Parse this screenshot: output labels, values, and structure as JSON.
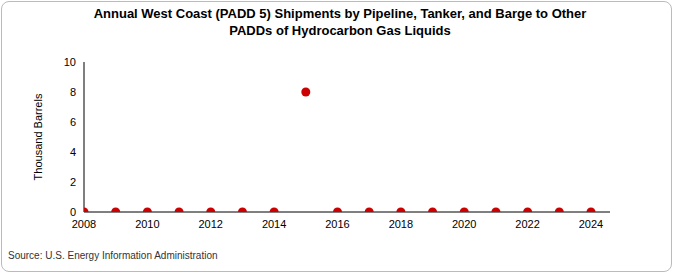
{
  "chart_data": {
    "type": "scatter",
    "title": "Annual West Coast (PADD 5) Shipments by Pipeline, Tanker, and Barge to Other PADDs of Hydrocarbon Gas Liquids",
    "y_label": "Thousand Barrels",
    "source": "Source: U.S. Energy Information Administration",
    "x": [
      2008,
      2009,
      2010,
      2011,
      2012,
      2013,
      2014,
      2015,
      2016,
      2017,
      2018,
      2019,
      2020,
      2021,
      2022,
      2023,
      2024
    ],
    "values": [
      0,
      0,
      0,
      0,
      0,
      0,
      0,
      8,
      0,
      0,
      0,
      0,
      0,
      0,
      0,
      0,
      0
    ],
    "color": "#cc0000",
    "marker": "circle",
    "xlim": [
      2008,
      2024.6
    ],
    "xticks": [
      2008,
      2010,
      2012,
      2014,
      2016,
      2018,
      2020,
      2022,
      2024
    ],
    "ylim": [
      0,
      10
    ],
    "yticks": [
      0,
      2,
      4,
      6,
      8,
      10
    ],
    "grid": false
  }
}
